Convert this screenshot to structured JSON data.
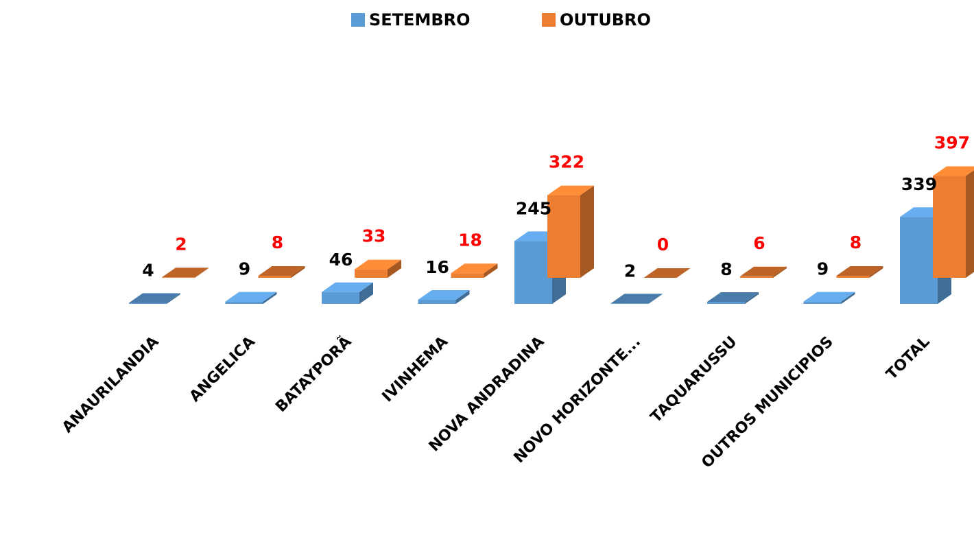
{
  "chart_data": {
    "type": "bar3d",
    "categories": [
      "ANAURILANDIA",
      "ANGELICA",
      "BATAYPORÃ",
      "IVINHEMA",
      "NOVA ANDRADINA",
      "NOVO HORIZONTE...",
      "TAQUARUSSU",
      "OUTROS MUNICIPIOS",
      "TOTAL"
    ],
    "series": [
      {
        "name": "SETEMBRO",
        "color": "#5b9bd5",
        "label_color": "#000000",
        "values": [
          4,
          9,
          46,
          16,
          245,
          2,
          8,
          9,
          339
        ]
      },
      {
        "name": "OUTUBRO",
        "color": "#ed7d31",
        "label_color": "#ff0000",
        "values": [
          2,
          8,
          33,
          18,
          322,
          0,
          6,
          8,
          397
        ]
      }
    ],
    "legend": "top"
  }
}
